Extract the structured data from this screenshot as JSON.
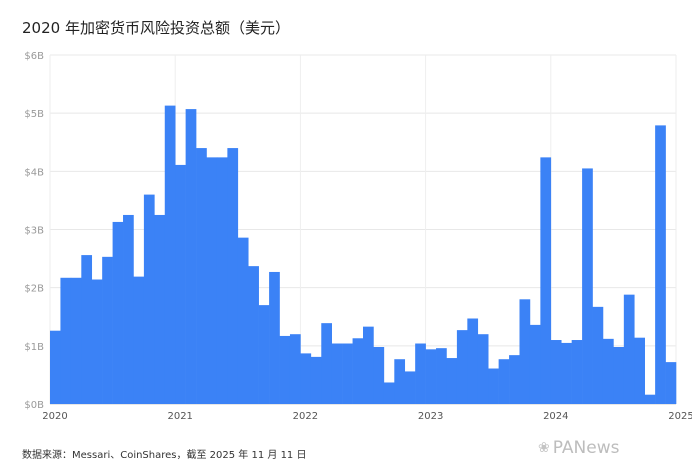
{
  "chart_data": {
    "type": "bar",
    "title": "2020 年加密货币风险投资总额（美元）",
    "xlabel": "",
    "ylabel": "",
    "ylim": [
      0,
      6
    ],
    "grid": true,
    "bar_color": "#3b82f6",
    "y_ticks": [
      "$0B",
      "$1B",
      "$2B",
      "$3B",
      "$4B",
      "$5B",
      "$6B"
    ],
    "x_ticks": [
      {
        "label": "2020",
        "index": 0
      },
      {
        "label": "2021",
        "index": 12
      },
      {
        "label": "2022",
        "index": 24
      },
      {
        "label": "2023",
        "index": 36
      },
      {
        "label": "2024",
        "index": 48
      },
      {
        "label": "2025",
        "index": 60
      }
    ],
    "values": [
      1.26,
      2.17,
      2.17,
      2.56,
      2.14,
      2.53,
      3.13,
      3.25,
      2.19,
      3.6,
      3.25,
      5.13,
      4.11,
      5.07,
      4.4,
      4.24,
      4.24,
      4.4,
      2.86,
      2.37,
      1.7,
      2.27,
      1.17,
      1.2,
      0.87,
      0.81,
      1.39,
      1.04,
      1.04,
      1.13,
      1.33,
      0.98,
      0.37,
      0.77,
      0.56,
      1.04,
      0.94,
      0.96,
      0.79,
      1.27,
      1.47,
      1.2,
      0.61,
      0.77,
      0.84,
      1.8,
      1.36,
      4.24,
      1.1,
      1.05,
      1.1,
      4.05,
      1.67,
      1.12,
      0.98,
      1.88,
      1.14,
      0.16,
      4.79,
      0.72
    ]
  },
  "source": "数据来源：Messari、CoinShares，截至 2025 年 11 月 11 日",
  "watermark": "PANews",
  "watermark_icon": "chat-bubble-icon"
}
